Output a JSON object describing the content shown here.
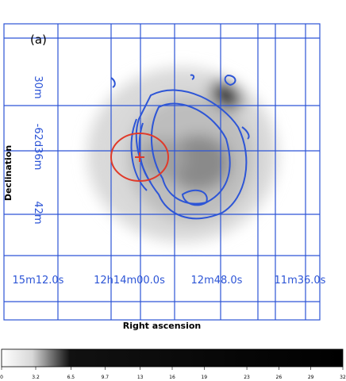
{
  "panel_label": "(a)",
  "x_label": "Right ascension",
  "y_label": "Declination",
  "ra_labels": [
    "15m12.0s",
    "12h14m00.0s",
    "12m48.0s",
    "11m36.0s"
  ],
  "dec_labels": [
    "30m",
    "-62d36m",
    "42m"
  ],
  "colorbar": {
    "min": 0,
    "max": 32,
    "ticks": [
      0,
      3.2,
      6.5,
      9.7,
      13,
      16,
      19,
      23,
      26,
      29,
      32
    ]
  }
}
